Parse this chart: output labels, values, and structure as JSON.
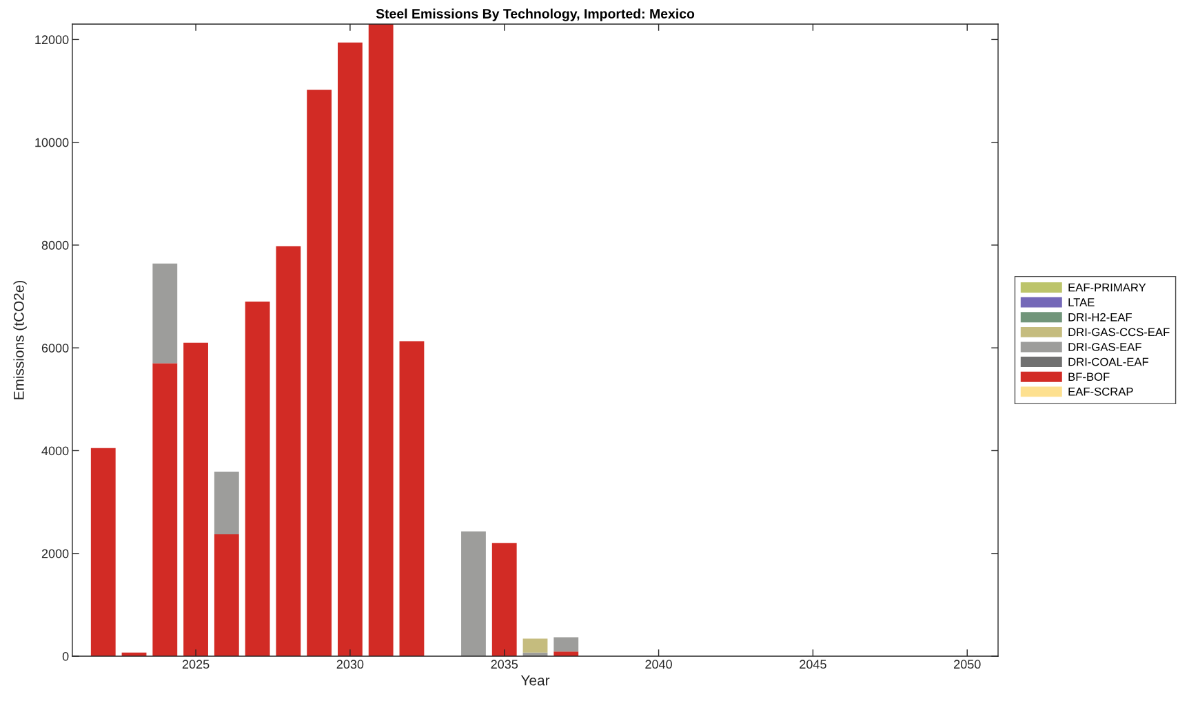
{
  "chart_data": {
    "type": "bar",
    "stacked": true,
    "title": "Steel Emissions By Technology, Imported: Mexico",
    "xlabel": "Year",
    "ylabel": "Emissions (tCO2e)",
    "x": [
      2022,
      2023,
      2024,
      2025,
      2026,
      2027,
      2028,
      2029,
      2030,
      2031,
      2032,
      2033,
      2034,
      2035,
      2036,
      2037,
      2038,
      2039,
      2040,
      2041,
      2042,
      2043,
      2044,
      2045,
      2046,
      2047,
      2048,
      2049,
      2050
    ],
    "series": [
      {
        "name": "EAF-SCRAP",
        "color": "#fde08f",
        "values": [
          0,
          0,
          0,
          0,
          0,
          0,
          0,
          0,
          0,
          0,
          0,
          0,
          0,
          0,
          0,
          0,
          0,
          0,
          0,
          0,
          0,
          0,
          0,
          0,
          0,
          0,
          0,
          0,
          0
        ]
      },
      {
        "name": "BF-BOF",
        "color": "#d22b25",
        "values": [
          4050,
          70,
          5700,
          6100,
          2370,
          6900,
          7980,
          11020,
          11940,
          12300,
          6130,
          0,
          0,
          2200,
          0,
          90,
          0,
          0,
          0,
          0,
          0,
          0,
          0,
          0,
          0,
          0,
          0,
          0,
          0
        ]
      },
      {
        "name": "DRI-COAL-EAF",
        "color": "#707070",
        "values": [
          0,
          0,
          0,
          0,
          0,
          0,
          0,
          0,
          0,
          0,
          0,
          0,
          0,
          0,
          0,
          0,
          0,
          0,
          0,
          0,
          0,
          0,
          0,
          0,
          0,
          0,
          0,
          0,
          0
        ]
      },
      {
        "name": "DRI-GAS-EAF",
        "color": "#9d9d9b",
        "values": [
          0,
          0,
          1940,
          0,
          1220,
          0,
          0,
          0,
          0,
          0,
          0,
          0,
          2430,
          0,
          70,
          280,
          0,
          0,
          0,
          0,
          0,
          0,
          0,
          0,
          0,
          0,
          0,
          0,
          0
        ]
      },
      {
        "name": "DRI-GAS-CCS-EAF",
        "color": "#c5bc7e",
        "values": [
          0,
          0,
          0,
          0,
          0,
          0,
          0,
          0,
          0,
          0,
          0,
          0,
          0,
          0,
          270,
          0,
          0,
          0,
          0,
          0,
          0,
          0,
          0,
          0,
          0,
          0,
          0,
          0,
          0
        ]
      },
      {
        "name": "DRI-H2-EAF",
        "color": "#71957a",
        "values": [
          0,
          0,
          0,
          0,
          0,
          0,
          0,
          0,
          0,
          0,
          0,
          0,
          0,
          0,
          0,
          0,
          0,
          0,
          0,
          0,
          0,
          0,
          0,
          0,
          0,
          0,
          0,
          0,
          0
        ]
      },
      {
        "name": "LTAE",
        "color": "#7468b8",
        "values": [
          0,
          0,
          0,
          0,
          0,
          0,
          0,
          0,
          0,
          0,
          0,
          0,
          0,
          0,
          0,
          0,
          0,
          0,
          0,
          0,
          0,
          0,
          0,
          0,
          0,
          0,
          0,
          0,
          0
        ]
      },
      {
        "name": "EAF-PRIMARY",
        "color": "#bcc46a",
        "values": [
          0,
          0,
          0,
          0,
          0,
          0,
          0,
          0,
          0,
          0,
          0,
          0,
          0,
          0,
          0,
          0,
          0,
          0,
          0,
          0,
          0,
          0,
          0,
          0,
          0,
          0,
          0,
          0,
          0
        ]
      }
    ],
    "xlim": [
      2021,
      2051
    ],
    "xticks": [
      2025,
      2030,
      2035,
      2040,
      2045,
      2050
    ],
    "ylim": [
      0,
      12300
    ],
    "yticks": [
      0,
      2000,
      4000,
      6000,
      8000,
      10000,
      12000
    ],
    "grid": false,
    "legend": "right"
  }
}
